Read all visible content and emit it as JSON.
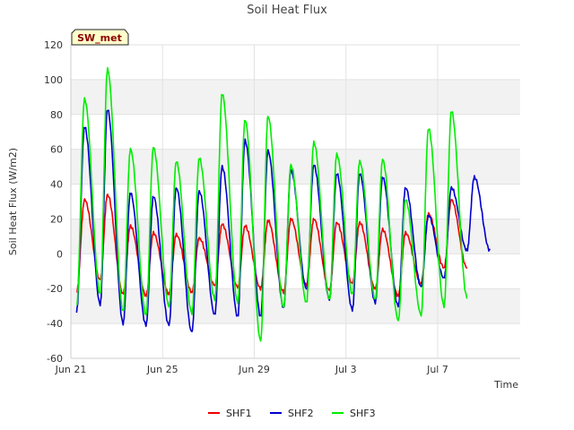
{
  "chart_data": {
    "type": "line",
    "title": "Soil Heat Flux",
    "xlabel": "Time",
    "ylabel": "Soil Heat Flux (W/m2)",
    "ylim": [
      -60,
      120
    ],
    "xlim": [
      0,
      19.6
    ],
    "yticks": [
      -60,
      -40,
      -20,
      0,
      20,
      40,
      60,
      80,
      100,
      120
    ],
    "xticks": [
      {
        "day": 0,
        "label": "Jun 21"
      },
      {
        "day": 4,
        "label": "Jun 25"
      },
      {
        "day": 8,
        "label": "Jun 29"
      },
      {
        "day": 12,
        "label": "Jul 3"
      },
      {
        "day": 16,
        "label": "Jul 7"
      }
    ],
    "site_label": "SW_met",
    "legend_position": "bottom-center",
    "series": [
      {
        "name": "SHF1",
        "color": "#ee0000",
        "peaks": [
          31,
          34,
          16,
          12,
          11,
          9,
          17,
          16,
          19,
          20,
          20,
          18,
          18,
          14,
          12,
          23,
          31
        ],
        "troughs": [
          -22,
          -15,
          -23,
          -24,
          -23,
          -22,
          -18,
          -19,
          -20,
          -22,
          -18,
          -21,
          -17,
          -20,
          -24,
          -17,
          -8,
          -8
        ]
      },
      {
        "name": "SHF2",
        "color": "#0000cc",
        "peaks": [
          73,
          83,
          35,
          33,
          38,
          36,
          50,
          65,
          59,
          48,
          51,
          46,
          46,
          44,
          38,
          22,
          38,
          44
        ],
        "troughs": [
          -33,
          -29,
          -40,
          -41,
          -41,
          -45,
          -35,
          -36,
          -36,
          -31,
          -20,
          -26,
          -32,
          -28,
          -30,
          -19,
          -14,
          2
        ]
      },
      {
        "name": "SHF3",
        "color": "#00ee00",
        "peaks": [
          89,
          106,
          60,
          61,
          53,
          55,
          92,
          77,
          79,
          51,
          64,
          57,
          53,
          54,
          31,
          72,
          82
        ],
        "troughs": [
          -30,
          -23,
          -33,
          -35,
          -30,
          -34,
          -26,
          -28,
          -50,
          -31,
          -28,
          -26,
          -23,
          -26,
          -38,
          -35,
          -30,
          -25
        ]
      }
    ]
  }
}
